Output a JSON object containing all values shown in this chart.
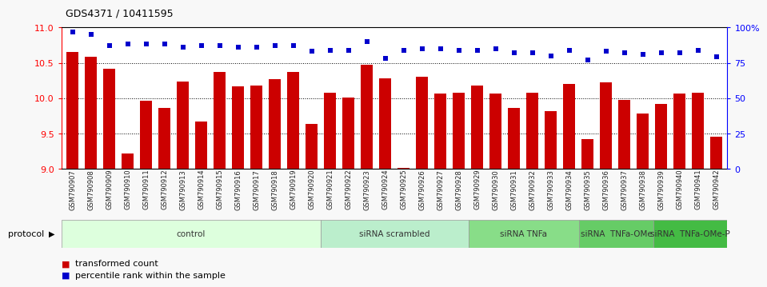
{
  "title": "GDS4371 / 10411595",
  "samples": [
    "GSM790907",
    "GSM790908",
    "GSM790909",
    "GSM790910",
    "GSM790911",
    "GSM790912",
    "GSM790913",
    "GSM790914",
    "GSM790915",
    "GSM790916",
    "GSM790917",
    "GSM790918",
    "GSM790919",
    "GSM790920",
    "GSM790921",
    "GSM790922",
    "GSM790923",
    "GSM790924",
    "GSM790925",
    "GSM790926",
    "GSM790927",
    "GSM790928",
    "GSM790929",
    "GSM790930",
    "GSM790931",
    "GSM790932",
    "GSM790933",
    "GSM790934",
    "GSM790935",
    "GSM790936",
    "GSM790937",
    "GSM790938",
    "GSM790939",
    "GSM790940",
    "GSM790941",
    "GSM790942"
  ],
  "bar_values": [
    10.65,
    10.58,
    10.42,
    9.22,
    9.96,
    9.86,
    10.24,
    9.67,
    10.37,
    10.17,
    10.18,
    10.27,
    10.37,
    9.63,
    10.08,
    10.01,
    10.47,
    10.28,
    9.01,
    10.3,
    10.07,
    10.08,
    10.18,
    10.07,
    9.86,
    10.08,
    9.82,
    10.2,
    9.42,
    10.22,
    9.97,
    9.78,
    9.92,
    10.06,
    10.08,
    9.46
  ],
  "percentile_values": [
    97,
    95,
    87,
    88,
    88,
    88,
    86,
    87,
    87,
    86,
    86,
    87,
    87,
    83,
    84,
    84,
    90,
    78,
    84,
    85,
    85,
    84,
    84,
    85,
    82,
    82,
    80,
    84,
    77,
    83,
    82,
    81,
    82,
    82,
    84,
    79
  ],
  "bar_color": "#CC0000",
  "percentile_color": "#0000CC",
  "ylim_left": [
    9.0,
    11.0
  ],
  "ylim_right": [
    0,
    100
  ],
  "yticks_left": [
    9.0,
    9.5,
    10.0,
    10.5,
    11.0
  ],
  "yticks_right": [
    0,
    25,
    50,
    75,
    100
  ],
  "ytick_labels_right": [
    "0",
    "25",
    "50",
    "75",
    "100%"
  ],
  "groups": [
    {
      "label": "control",
      "start": 0,
      "end": 14,
      "color": "#ddffdd"
    },
    {
      "label": "siRNA scrambled",
      "start": 14,
      "end": 22,
      "color": "#bbeecc"
    },
    {
      "label": "siRNA TNFa",
      "start": 22,
      "end": 28,
      "color": "#88dd88"
    },
    {
      "label": "siRNA  TNFa-OMe",
      "start": 28,
      "end": 32,
      "color": "#66cc66"
    },
    {
      "label": "siRNA  TNFa-OMe-P",
      "start": 32,
      "end": 36,
      "color": "#44bb44"
    }
  ],
  "protocol_label": "protocol",
  "legend_items": [
    {
      "label": "transformed count",
      "color": "#CC0000"
    },
    {
      "label": "percentile rank within the sample",
      "color": "#0000CC"
    }
  ],
  "bg_color": "#f8f8f8",
  "plot_bg_color": "#ffffff",
  "xtick_bg_color": "#d8d8d8"
}
